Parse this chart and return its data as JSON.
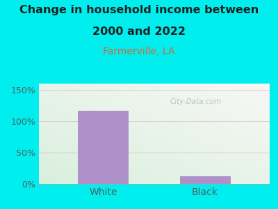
{
  "title_line1": "Change in household income between",
  "title_line2": "2000 and 2022",
  "subtitle": "Farmerville, LA",
  "categories": [
    "White",
    "Black"
  ],
  "values": [
    117,
    12
  ],
  "bar_color": "#b090c8",
  "background_color": "#00eeee",
  "title_fontsize": 11.5,
  "subtitle_fontsize": 10,
  "subtitle_color": "#e06030",
  "tick_label_color": "#506060",
  "yticks": [
    0,
    50,
    100,
    150
  ],
  "ylim": [
    0,
    160
  ],
  "watermark": "City-Data.com",
  "grid_color": "#cc9999",
  "title_color": "#202020"
}
